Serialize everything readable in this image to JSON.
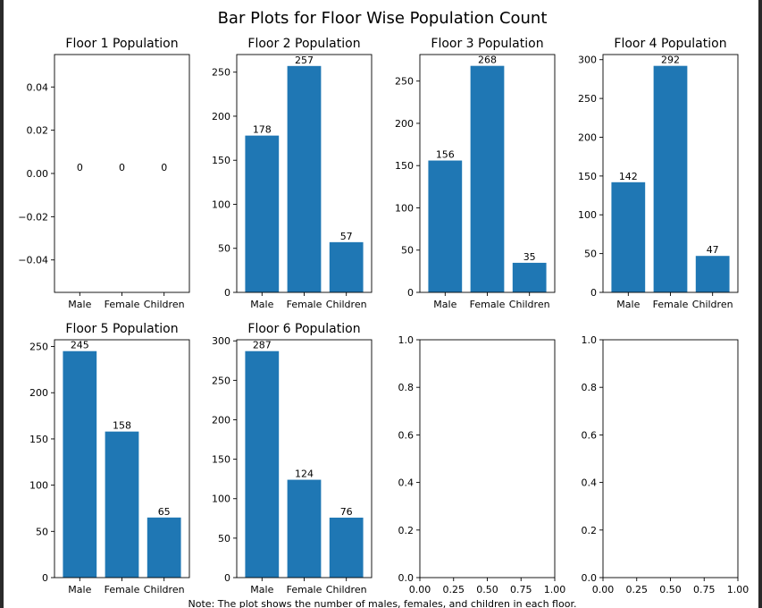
{
  "figure": {
    "title": "Bar Plots for Floor Wise Population Count",
    "note": "Note: The plot shows the number of males, females, and children in each floor."
  },
  "colors": {
    "bar": "#1f77b4",
    "axis": "#000000",
    "background": "#ffffff",
    "window_edge": "#2a2a2a"
  },
  "chart_data": [
    {
      "type": "bar",
      "title": "Floor 1 Population",
      "categories": [
        "Male",
        "Female",
        "Children"
      ],
      "values": [
        0,
        0,
        0
      ],
      "ylim": [
        -0.055,
        0.055
      ],
      "yticks": [
        -0.04,
        -0.02,
        0.0,
        0.02,
        0.04
      ],
      "ytick_labels": [
        "−0.04",
        "−0.02",
        "0.00",
        "0.02",
        "0.04"
      ],
      "data_labels": [
        "0",
        "0",
        "0"
      ]
    },
    {
      "type": "bar",
      "title": "Floor 2 Population",
      "categories": [
        "Male",
        "Female",
        "Children"
      ],
      "values": [
        178,
        257,
        57
      ],
      "ylim": [
        0,
        270
      ],
      "yticks": [
        0,
        50,
        100,
        150,
        200,
        250
      ],
      "ytick_labels": [
        "0",
        "50",
        "100",
        "150",
        "200",
        "250"
      ],
      "data_labels": [
        "178",
        "257",
        "57"
      ]
    },
    {
      "type": "bar",
      "title": "Floor 3 Population",
      "categories": [
        "Male",
        "Female",
        "Children"
      ],
      "values": [
        156,
        268,
        35
      ],
      "ylim": [
        0,
        281.4
      ],
      "yticks": [
        0,
        50,
        100,
        150,
        200,
        250
      ],
      "ytick_labels": [
        "0",
        "50",
        "100",
        "150",
        "200",
        "250"
      ],
      "data_labels": [
        "156",
        "268",
        "35"
      ]
    },
    {
      "type": "bar",
      "title": "Floor 4 Population",
      "categories": [
        "Male",
        "Female",
        "Children"
      ],
      "values": [
        142,
        292,
        47
      ],
      "ylim": [
        0,
        306.6
      ],
      "yticks": [
        0,
        50,
        100,
        150,
        200,
        250,
        300
      ],
      "ytick_labels": [
        "0",
        "50",
        "100",
        "150",
        "200",
        "250",
        "300"
      ],
      "data_labels": [
        "142",
        "292",
        "47"
      ]
    },
    {
      "type": "bar",
      "title": "Floor 5 Population",
      "categories": [
        "Male",
        "Female",
        "Children"
      ],
      "values": [
        245,
        158,
        65
      ],
      "ylim": [
        0,
        257.3
      ],
      "yticks": [
        0,
        50,
        100,
        150,
        200,
        250
      ],
      "ytick_labels": [
        "0",
        "50",
        "100",
        "150",
        "200",
        "250"
      ],
      "data_labels": [
        "245",
        "158",
        "65"
      ]
    },
    {
      "type": "bar",
      "title": "Floor 6 Population",
      "categories": [
        "Male",
        "Female",
        "Children"
      ],
      "values": [
        287,
        124,
        76
      ],
      "ylim": [
        0,
        301.4
      ],
      "yticks": [
        0,
        50,
        100,
        150,
        200,
        250,
        300
      ],
      "ytick_labels": [
        "0",
        "50",
        "100",
        "150",
        "200",
        "250",
        "300"
      ],
      "data_labels": [
        "287",
        "124",
        "76"
      ]
    },
    {
      "type": "bar",
      "title": "",
      "categories": [],
      "values": [],
      "xlim": [
        0,
        1
      ],
      "ylim": [
        0,
        1
      ],
      "xticks": [
        0,
        0.25,
        0.5,
        0.75,
        1.0
      ],
      "xtick_labels": [
        "0.00",
        "0.25",
        "0.50",
        "0.75",
        "1.00"
      ],
      "yticks": [
        0,
        0.2,
        0.4,
        0.6,
        0.8,
        1.0
      ],
      "ytick_labels": [
        "0.0",
        "0.2",
        "0.4",
        "0.6",
        "0.8",
        "1.0"
      ]
    },
    {
      "type": "bar",
      "title": "",
      "categories": [],
      "values": [],
      "xlim": [
        0,
        1
      ],
      "ylim": [
        0,
        1
      ],
      "xticks": [
        0,
        0.25,
        0.5,
        0.75,
        1.0
      ],
      "xtick_labels": [
        "0.00",
        "0.25",
        "0.50",
        "0.75",
        "1.00"
      ],
      "yticks": [
        0,
        0.2,
        0.4,
        0.6,
        0.8,
        1.0
      ],
      "ytick_labels": [
        "0.0",
        "0.2",
        "0.4",
        "0.6",
        "0.8",
        "1.0"
      ]
    }
  ]
}
